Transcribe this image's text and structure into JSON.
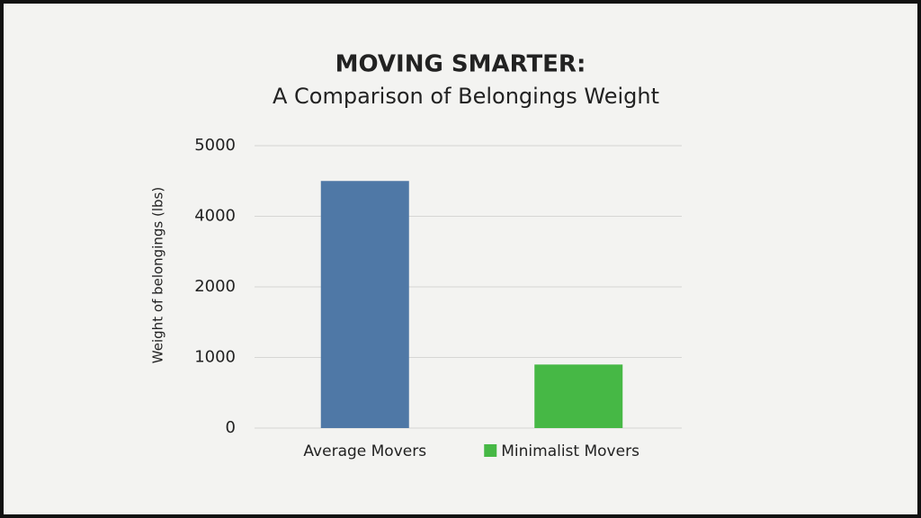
{
  "chart_data": {
    "type": "bar",
    "title": "MOVING SMARTER:",
    "subtitle": "A Comparison of Belongings Weight",
    "y_label": "Weight of belongings (lbs)",
    "categories": [
      "Average Movers",
      "Minimalist Movers"
    ],
    "values": [
      4500,
      900
    ],
    "colors": [
      "#4f78a6",
      "#46b845"
    ],
    "ylim": [
      0,
      5000
    ],
    "yticks": [
      0,
      1000,
      2000,
      4000,
      5000
    ],
    "grid": true
  }
}
